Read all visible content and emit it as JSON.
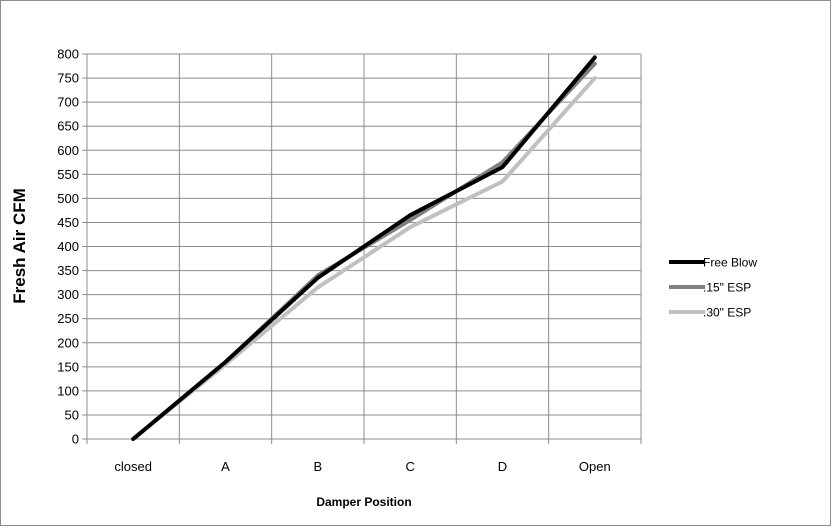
{
  "chart_data": {
    "type": "line",
    "categories": [
      "closed",
      "A",
      "B",
      "C",
      "D",
      "Open"
    ],
    "series": [
      {
        "name": "Free Blow",
        "values": [
          0,
          160,
          335,
          465,
          565,
          793
        ],
        "color": "#000000"
      },
      {
        "name": ".15\" ESP",
        "values": [
          0,
          160,
          340,
          455,
          575,
          780
        ],
        "color": "#7f7f7f"
      },
      {
        "name": ".30\" ESP",
        "values": [
          0,
          155,
          315,
          440,
          535,
          750
        ],
        "color": "#c0c0c0"
      }
    ],
    "xlabel": "Damper Position",
    "ylabel": "Fresh Air CFM",
    "ylim": [
      0,
      800
    ],
    "ytick_step": 50,
    "grid": true,
    "legend_position": "right"
  }
}
